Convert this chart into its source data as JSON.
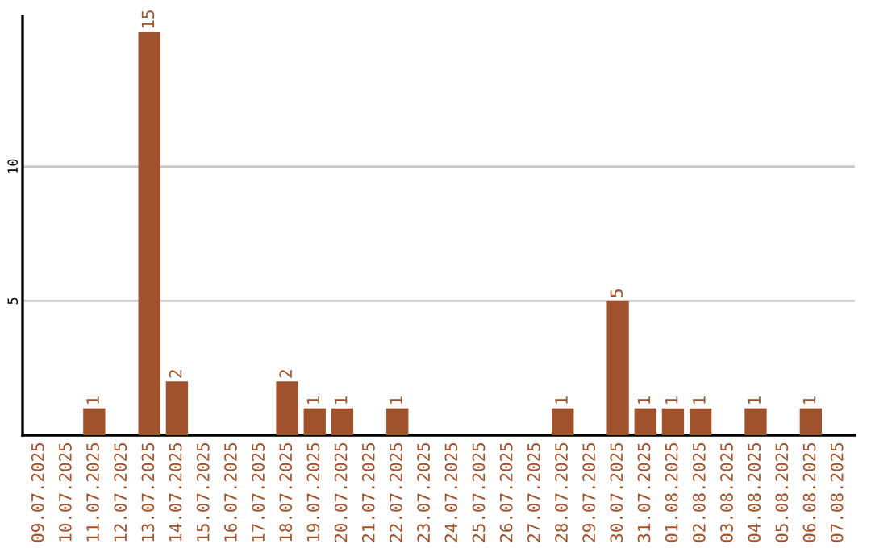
{
  "chart_data": {
    "type": "bar",
    "categories": [
      "09.07.2025",
      "10.07.2025",
      "11.07.2025",
      "12.07.2025",
      "13.07.2025",
      "14.07.2025",
      "15.07.2025",
      "16.07.2025",
      "17.07.2025",
      "18.07.2025",
      "19.07.2025",
      "20.07.2025",
      "21.07.2025",
      "22.07.2025",
      "23.07.2025",
      "24.07.2025",
      "25.07.2025",
      "26.07.2025",
      "27.07.2025",
      "28.07.2025",
      "29.07.2025",
      "30.07.2025",
      "31.07.2025",
      "01.08.2025",
      "02.08.2025",
      "03.08.2025",
      "04.08.2025",
      "05.08.2025",
      "06.08.2025",
      "07.08.2025"
    ],
    "values": [
      0,
      0,
      1,
      0,
      15,
      2,
      0,
      0,
      0,
      2,
      1,
      1,
      0,
      1,
      0,
      0,
      0,
      0,
      0,
      1,
      0,
      5,
      1,
      1,
      1,
      0,
      1,
      0,
      1,
      0
    ],
    "value_labels": [
      null,
      null,
      "1",
      null,
      "15",
      "2",
      null,
      null,
      null,
      "2",
      "1",
      "1",
      null,
      "1",
      null,
      null,
      null,
      null,
      null,
      "1",
      null,
      "5",
      "1",
      "1",
      "1",
      null,
      "1",
      null,
      "1",
      null
    ],
    "color": "#a0522d",
    "ylim": [
      0,
      15.6
    ],
    "yticks": [
      5,
      10
    ],
    "grid": "y"
  }
}
